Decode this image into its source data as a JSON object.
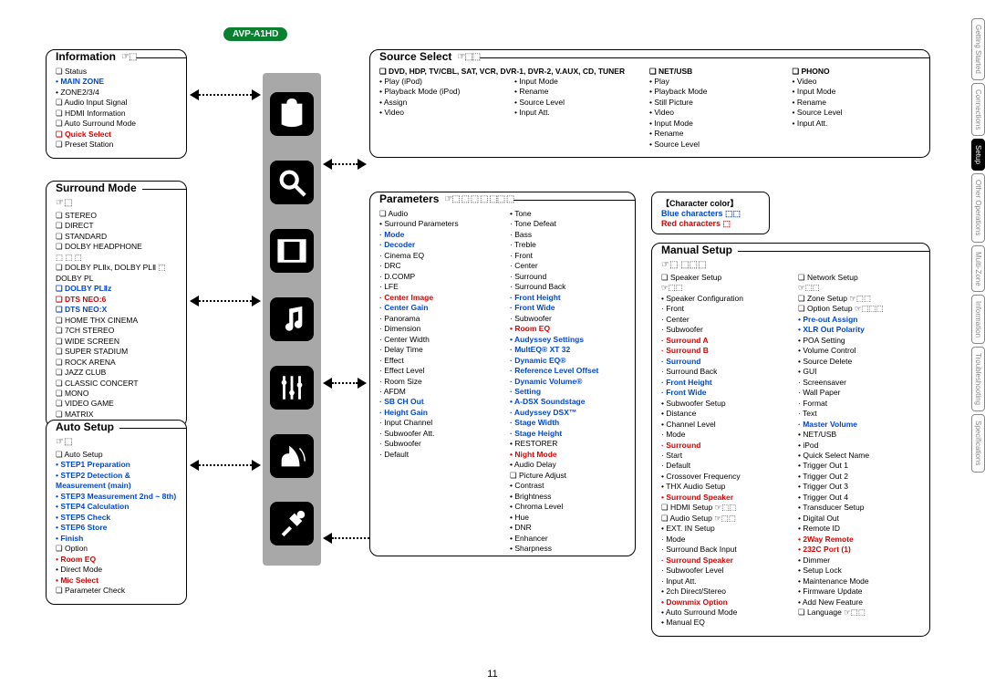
{
  "model": "AVP-A1HD",
  "page_number": "11",
  "tabs": [
    "Getting Started",
    "Connections",
    "Setup",
    "Other Operations",
    "Multi-Zone",
    "Information",
    "Troubleshooting",
    "Specifications"
  ],
  "active_tab_index": 2,
  "information": {
    "title": "Information",
    "ref": "☞⬚",
    "items": [
      {
        "t": "Status",
        "cls": "q"
      },
      {
        "t": "MAIN ZONE",
        "cls": "dot blue bold"
      },
      {
        "t": "ZONE2/3/4",
        "cls": "dot"
      },
      {
        "t": "Audio Input Signal",
        "cls": "q"
      },
      {
        "t": "HDMI Information",
        "cls": "q"
      },
      {
        "t": "Auto Surround Mode",
        "cls": "q"
      },
      {
        "t": "Quick Select",
        "cls": "q red bold"
      },
      {
        "t": "Preset Station",
        "cls": "q"
      }
    ]
  },
  "surround_mode": {
    "title": "Surround Mode",
    "ref": "☞⬚",
    "items": [
      {
        "t": "STEREO",
        "cls": "q"
      },
      {
        "t": "DIRECT",
        "cls": "q"
      },
      {
        "t": "STANDARD",
        "cls": "q"
      },
      {
        "t": "DOLBY HEADPHONE",
        "cls": "q"
      },
      {
        "t": "⬚  ⬚  ⬚",
        "cls": ""
      },
      {
        "t": "DOLBY PLⅡx, DOLBY PLⅡ ⬚ DOLBY PL",
        "cls": "q"
      },
      {
        "t": "DOLBY PLⅡz",
        "cls": "q blue bold"
      },
      {
        "t": "DTS NEO:6",
        "cls": "q red bold"
      },
      {
        "t": "DTS NEO:X",
        "cls": "q blue bold"
      },
      {
        "t": "HOME THX CINEMA",
        "cls": "q"
      },
      {
        "t": "7CH STEREO",
        "cls": "q"
      },
      {
        "t": "WIDE SCREEN",
        "cls": "q"
      },
      {
        "t": "SUPER STADIUM",
        "cls": "q"
      },
      {
        "t": "ROCK ARENA",
        "cls": "q"
      },
      {
        "t": "JAZZ CLUB",
        "cls": "q"
      },
      {
        "t": "CLASSIC CONCERT",
        "cls": "q"
      },
      {
        "t": "MONO",
        "cls": "q"
      },
      {
        "t": "VIDEO GAME",
        "cls": "q"
      },
      {
        "t": "MATRIX",
        "cls": "q"
      }
    ]
  },
  "auto_setup": {
    "title": "Auto Setup",
    "ref": "☞⬚",
    "items": [
      {
        "t": "Auto Setup",
        "cls": "q"
      },
      {
        "t": "STEP1 Preparation",
        "cls": "dot blue bold"
      },
      {
        "t": "STEP2 Detection & Measurement (main)",
        "cls": "dot blue bold"
      },
      {
        "t": "STEP3 Measurement 2nd ~ 8th)",
        "cls": "dot blue bold"
      },
      {
        "t": "STEP4 Calculation",
        "cls": "dot blue bold"
      },
      {
        "t": "STEP5 Check",
        "cls": "dot blue bold"
      },
      {
        "t": "STEP6 Store",
        "cls": "dot blue bold"
      },
      {
        "t": "Finish",
        "cls": "dot blue bold"
      },
      {
        "t": "Option",
        "cls": "q"
      },
      {
        "t": "Room EQ",
        "cls": "dot red bold"
      },
      {
        "t": "Direct Mode",
        "cls": "dot"
      },
      {
        "t": "Mic Select",
        "cls": "dot red bold"
      },
      {
        "t": "Parameter Check",
        "cls": "q"
      }
    ]
  },
  "source_select": {
    "title": "Source Select",
    "ref": "☞⬚⬚",
    "col1_header": "DVD, HDP, TV/CBL, SAT, VCR, DVR-1, DVR-2, V.AUX, CD, TUNER",
    "col1": [
      {
        "t": "Play (iPod)",
        "cls": "dot"
      },
      {
        "t": "Playback Mode (iPod)",
        "cls": "dot"
      },
      {
        "t": "Assign",
        "cls": "dot"
      },
      {
        "t": "Video",
        "cls": "dot"
      }
    ],
    "col1b": [
      {
        "t": "Input Mode",
        "cls": "dot"
      },
      {
        "t": "Rename",
        "cls": "dot"
      },
      {
        "t": "Source Level",
        "cls": "dot"
      },
      {
        "t": "Input Att.",
        "cls": "dot"
      }
    ],
    "col2_header": "NET/USB",
    "col2": [
      {
        "t": "Play",
        "cls": "dot"
      },
      {
        "t": "Playback Mode",
        "cls": "dot"
      },
      {
        "t": "Still Picture",
        "cls": "dot"
      },
      {
        "t": "Video",
        "cls": "dot"
      },
      {
        "t": "Input Mode",
        "cls": "dot"
      },
      {
        "t": "Rename",
        "cls": "dot"
      },
      {
        "t": "Source Level",
        "cls": "dot"
      }
    ],
    "col3_header": "PHONO",
    "col3": [
      {
        "t": "Video",
        "cls": "dot"
      },
      {
        "t": "Input Mode",
        "cls": "dot"
      },
      {
        "t": "Rename",
        "cls": "dot"
      },
      {
        "t": "Source Level",
        "cls": "dot"
      },
      {
        "t": "Input Att.",
        "cls": "dot"
      }
    ]
  },
  "character_color": {
    "title": "【Character color】",
    "blue": "Blue characters ⬚⬚",
    "red": "Red characters ⬚"
  },
  "parameters": {
    "title": "Parameters",
    "ref": "☞⬚  ⬚ ⬚ ⬚ ⬚⬚  ⬚",
    "col1": [
      {
        "t": "Audio",
        "cls": "q"
      },
      {
        "t": "Surround Parameters",
        "cls": "dot"
      },
      {
        "t": "Mode",
        "cls": "dash blue bold"
      },
      {
        "t": "Decoder",
        "cls": "dash blue bold"
      },
      {
        "t": "Cinema EQ",
        "cls": "dash"
      },
      {
        "t": "DRC",
        "cls": "dash"
      },
      {
        "t": "D.COMP",
        "cls": "dash"
      },
      {
        "t": "LFE",
        "cls": "dash"
      },
      {
        "t": "Center Image",
        "cls": "dash red bold"
      },
      {
        "t": "Center Gain",
        "cls": "dash blue bold"
      },
      {
        "t": "Panorama",
        "cls": "dash"
      },
      {
        "t": "Dimension",
        "cls": "dash"
      },
      {
        "t": "Center Width",
        "cls": "dash"
      },
      {
        "t": "Delay Time",
        "cls": "dash"
      },
      {
        "t": "Effect",
        "cls": "dash"
      },
      {
        "t": "Effect Level",
        "cls": "dash"
      },
      {
        "t": "Room Size",
        "cls": "dash"
      },
      {
        "t": "AFDM",
        "cls": "dash"
      },
      {
        "t": "SB CH Out",
        "cls": "dash blue bold"
      },
      {
        "t": "Height Gain",
        "cls": "dash blue bold"
      },
      {
        "t": "Input Channel",
        "cls": "dash"
      },
      {
        "t": "Subwoofer Att.",
        "cls": "dash"
      },
      {
        "t": "Subwoofer",
        "cls": "dash"
      },
      {
        "t": "Default",
        "cls": "dash"
      }
    ],
    "col2": [
      {
        "t": "Tone",
        "cls": "dot"
      },
      {
        "t": "Tone Defeat",
        "cls": "dash"
      },
      {
        "t": "Bass",
        "cls": "dash"
      },
      {
        "t": "Treble",
        "cls": "dash"
      },
      {
        "t": "Front",
        "cls": "dash"
      },
      {
        "t": "Center",
        "cls": "dash"
      },
      {
        "t": "Surround",
        "cls": "dash"
      },
      {
        "t": "Surround Back",
        "cls": "dash"
      },
      {
        "t": "Front Height",
        "cls": "dash blue bold"
      },
      {
        "t": "Front Wide",
        "cls": "dash blue bold"
      },
      {
        "t": "Subwoofer",
        "cls": "dash"
      },
      {
        "t": "Room EQ",
        "cls": "dot red bold"
      },
      {
        "t": "Audyssey Settings",
        "cls": "dot blue bold"
      },
      {
        "t": "MultEQ® XT 32",
        "cls": "dash blue bold"
      },
      {
        "t": "Dynamic EQ®",
        "cls": "dash blue bold"
      },
      {
        "t": "Reference Level Offset",
        "cls": "dash blue bold"
      },
      {
        "t": "Dynamic Volume®",
        "cls": "dash blue bold"
      },
      {
        "t": "Setting",
        "cls": "dash blue bold"
      },
      {
        "t": "A-DSX Soundstage",
        "cls": "dot blue bold"
      },
      {
        "t": "Audyssey DSX™",
        "cls": "dash blue bold"
      },
      {
        "t": "Stage Width",
        "cls": "dash blue bold"
      },
      {
        "t": "Stage Height",
        "cls": "dash blue bold"
      },
      {
        "t": "RESTORER",
        "cls": "dot"
      },
      {
        "t": "Night Mode",
        "cls": "dot red bold"
      },
      {
        "t": "Audio Delay",
        "cls": "dot"
      },
      {
        "t": "Picture Adjust",
        "cls": "q"
      },
      {
        "t": "Contrast",
        "cls": "dot"
      },
      {
        "t": "Brightness",
        "cls": "dot"
      },
      {
        "t": "Chroma Level",
        "cls": "dot"
      },
      {
        "t": "Hue",
        "cls": "dot"
      },
      {
        "t": "DNR",
        "cls": "dot"
      },
      {
        "t": "Enhancer",
        "cls": "dot"
      },
      {
        "t": "Sharpness",
        "cls": "dot"
      }
    ]
  },
  "manual_setup": {
    "title": "Manual Setup",
    "ref": "☞⬚         ⬚⬚⬚",
    "col1": [
      {
        "t": "Speaker Setup",
        "cls": "q"
      },
      {
        "t": "☞⬚⬚",
        "cls": ""
      },
      {
        "t": "Speaker Configuration",
        "cls": "dot"
      },
      {
        "t": "Front",
        "cls": "dash"
      },
      {
        "t": "Center",
        "cls": "dash"
      },
      {
        "t": "Subwoofer",
        "cls": "dash"
      },
      {
        "t": "Surround A",
        "cls": "dash red bold"
      },
      {
        "t": "Surround B",
        "cls": "dash red bold"
      },
      {
        "t": "Surround",
        "cls": "dash blue bold"
      },
      {
        "t": "Surround Back",
        "cls": "dash"
      },
      {
        "t": "Front Height",
        "cls": "dash blue bold"
      },
      {
        "t": "Front Wide",
        "cls": "dash blue bold"
      },
      {
        "t": "Subwoofer Setup",
        "cls": "dot"
      },
      {
        "t": "Distance",
        "cls": "dot"
      },
      {
        "t": "Channel Level",
        "cls": "dot"
      },
      {
        "t": "Mode",
        "cls": "dash"
      },
      {
        "t": "Surround",
        "cls": "dash red bold"
      },
      {
        "t": "Start",
        "cls": "dash"
      },
      {
        "t": "Default",
        "cls": "dash"
      },
      {
        "t": "Crossover Frequency",
        "cls": "dot"
      },
      {
        "t": "THX Audio Setup",
        "cls": "dot"
      },
      {
        "t": "Surround Speaker",
        "cls": "dot red bold"
      },
      {
        "t": "HDMI Setup ☞⬚⬚",
        "cls": "q"
      },
      {
        "t": "Audio Setup ☞⬚⬚",
        "cls": "q"
      },
      {
        "t": "EXT. IN Setup",
        "cls": "dot"
      },
      {
        "t": "Mode",
        "cls": "dash"
      },
      {
        "t": "Surround Back Input",
        "cls": "dash"
      },
      {
        "t": "Surround Speaker",
        "cls": "dash red bold"
      },
      {
        "t": "Subwoofer Level",
        "cls": "dash"
      },
      {
        "t": "Input Att.",
        "cls": "dash"
      },
      {
        "t": "2ch Direct/Stereo",
        "cls": "dot"
      },
      {
        "t": "Downmix Option",
        "cls": "dot red bold"
      },
      {
        "t": "Auto Surround Mode",
        "cls": "dot"
      },
      {
        "t": "Manual EQ",
        "cls": "dot"
      }
    ],
    "col2": [
      {
        "t": "Network Setup",
        "cls": "q"
      },
      {
        "t": "☞⬚⬚",
        "cls": ""
      },
      {
        "t": "Zone Setup ☞⬚⬚",
        "cls": "q"
      },
      {
        "t": "Option Setup ☞⬚⬚⬚",
        "cls": "q"
      },
      {
        "t": "Pre-out Assign",
        "cls": "dot blue bold"
      },
      {
        "t": "XLR Out Polarity",
        "cls": "dot blue bold"
      },
      {
        "t": "POA Setting",
        "cls": "dot"
      },
      {
        "t": "Volume Control",
        "cls": "dot"
      },
      {
        "t": "Source Delete",
        "cls": "dot"
      },
      {
        "t": "GUI",
        "cls": "dot"
      },
      {
        "t": "Screensaver",
        "cls": "dash"
      },
      {
        "t": "Wall Paper",
        "cls": "dash"
      },
      {
        "t": "Format",
        "cls": "dash"
      },
      {
        "t": "Text",
        "cls": "dash"
      },
      {
        "t": "Master Volume",
        "cls": "dash blue bold"
      },
      {
        "t": "NET/USB",
        "cls": "dot"
      },
      {
        "t": "iPod",
        "cls": "dot"
      },
      {
        "t": "Quick Select Name",
        "cls": "dot"
      },
      {
        "t": "Trigger Out 1",
        "cls": "dot"
      },
      {
        "t": "Trigger Out 2",
        "cls": "dot"
      },
      {
        "t": "Trigger Out 3",
        "cls": "dot"
      },
      {
        "t": "Trigger Out 4",
        "cls": "dot"
      },
      {
        "t": "Transducer Setup",
        "cls": "dot"
      },
      {
        "t": "Digital Out",
        "cls": "dot"
      },
      {
        "t": "Remote ID",
        "cls": "dot"
      },
      {
        "t": "2Way Remote",
        "cls": "dot red bold"
      },
      {
        "t": "232C Port (1)",
        "cls": "dot red bold"
      },
      {
        "t": "Dimmer",
        "cls": "dot"
      },
      {
        "t": "Setup Lock",
        "cls": "dot"
      },
      {
        "t": "Maintenance Mode",
        "cls": "dot"
      },
      {
        "t": "Firmware Update",
        "cls": "dot"
      },
      {
        "t": "Add New Feature",
        "cls": "dot"
      },
      {
        "t": "Language ☞⬚⬚",
        "cls": "q"
      }
    ]
  }
}
